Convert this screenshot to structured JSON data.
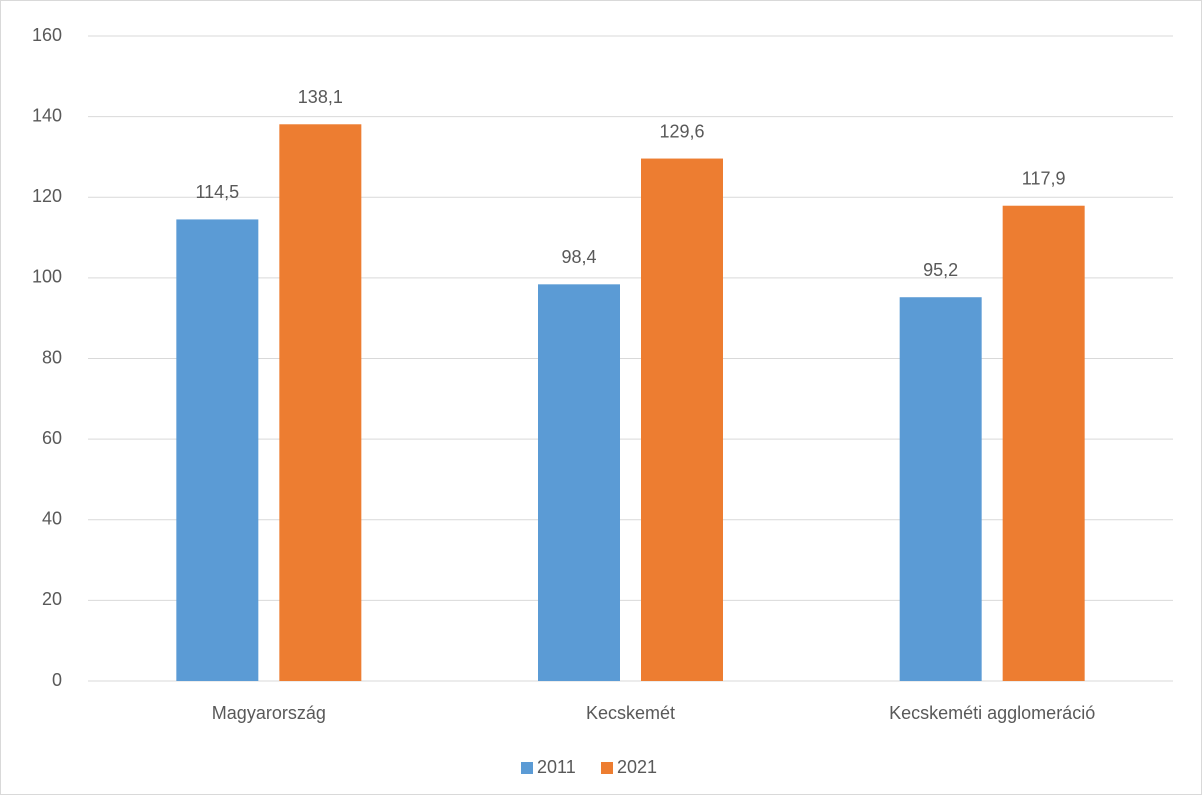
{
  "chart_data": {
    "type": "bar",
    "categories": [
      "Magyarország",
      "Kecskemét",
      "Kecskeméti agglomeráció"
    ],
    "series": [
      {
        "name": "2011",
        "color": "#5b9bd5",
        "values": [
          114.5,
          98.4,
          95.2
        ],
        "value_labels": [
          "114,5",
          "98,4",
          "95,2"
        ]
      },
      {
        "name": "2021",
        "color": "#ed7d31",
        "values": [
          138.1,
          129.6,
          117.9
        ],
        "value_labels": [
          "138,1",
          "129,6",
          "117,9"
        ]
      }
    ],
    "ylim": [
      0,
      160
    ],
    "yticks": [
      0,
      20,
      40,
      60,
      80,
      100,
      120,
      140,
      160
    ],
    "grid": true,
    "legend": "bottom"
  }
}
